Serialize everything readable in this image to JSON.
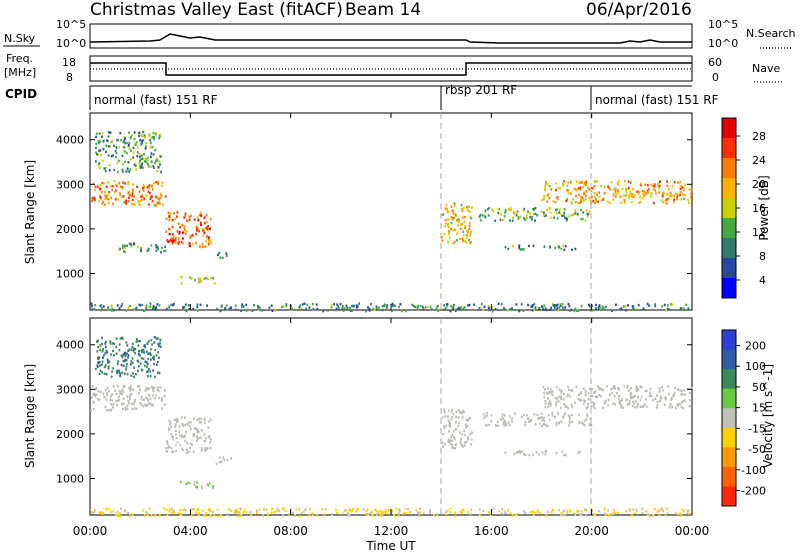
{
  "header": {
    "title": "Christmas Valley East (fitACF)",
    "beam": "Beam 14",
    "date": "06/Apr/2016"
  },
  "panels": {
    "nsky": {
      "label": "N.Sky",
      "left_ticks": [
        "10^5",
        "10^0"
      ],
      "right_ticks": [
        "10^5",
        "10^0"
      ],
      "right_label": "N.Search"
    },
    "freq": {
      "label_line1": "Freq.",
      "label_line2": "[MHz]",
      "left_ticks": [
        "18",
        "8"
      ],
      "right_ticks": [
        "60",
        "0"
      ],
      "right_label": "Nave"
    },
    "cpid": {
      "label": "CPID",
      "segments": [
        "normal (fast) 151 RF",
        "rbsp 201 RF",
        "normal (fast) 151 RF"
      ]
    }
  },
  "colors": {
    "power_scale": [
      "#0000ff",
      "#2747a0",
      "#2e7d6a",
      "#44aa44",
      "#c8d200",
      "#ffb300",
      "#ff7a00",
      "#ff3000",
      "#e00000"
    ],
    "velocity_scale": [
      "#2b3fd9",
      "#2f5fa8",
      "#3a8a5a",
      "#66cc44",
      "#c0c0b8",
      "#ffd000",
      "#ff9a00",
      "#ff6000",
      "#ff2a00"
    ],
    "ground_scatter": "#b8b8b0"
  },
  "chart_data": [
    {
      "type": "heatmap",
      "title": "",
      "xlabel": "Time UT",
      "ylabel": "Slant Range [km]",
      "x_ticks": [
        "00:00",
        "04:00",
        "08:00",
        "12:00",
        "16:00",
        "20:00",
        "00:00"
      ],
      "y_ticks": [
        "1000",
        "2000",
        "3000",
        "4000"
      ],
      "ylim": [
        180,
        4600
      ],
      "xlim_hours": [
        0,
        24
      ],
      "colorbar": {
        "label": "Power [dB]",
        "ticks": [
          "28",
          "24",
          "20",
          "16",
          "12",
          "8",
          "4"
        ],
        "range": [
          0,
          30
        ]
      },
      "echo_regions": [
        {
          "t0": 0.0,
          "t1": 3.0,
          "r0": 2550,
          "r1": 3100,
          "power": 22
        },
        {
          "t0": 0.2,
          "t1": 2.8,
          "r0": 3300,
          "r1": 4200,
          "power": 10
        },
        {
          "t0": 1.0,
          "t1": 3.0,
          "r0": 1500,
          "r1": 1700,
          "power": 8
        },
        {
          "t0": 3.0,
          "t1": 4.8,
          "r0": 1600,
          "r1": 2400,
          "power": 24
        },
        {
          "t0": 3.5,
          "t1": 5.0,
          "r0": 800,
          "r1": 950,
          "power": 16
        },
        {
          "t0": 5.0,
          "t1": 5.6,
          "r0": 1350,
          "r1": 1500,
          "power": 8
        },
        {
          "t0": 14.0,
          "t1": 15.2,
          "r0": 1700,
          "r1": 2600,
          "power": 18
        },
        {
          "t0": 15.5,
          "t1": 20.0,
          "r0": 2200,
          "r1": 2500,
          "power": 12
        },
        {
          "t0": 16.5,
          "t1": 19.5,
          "r0": 1550,
          "r1": 1650,
          "power": 8
        },
        {
          "t0": 18.0,
          "t1": 24.0,
          "r0": 2600,
          "r1": 3100,
          "power": 20
        },
        {
          "t0": 0.0,
          "t1": 24.0,
          "r0": 180,
          "r1": 350,
          "power": 8
        }
      ]
    },
    {
      "type": "heatmap",
      "title": "",
      "xlabel": "Time UT",
      "ylabel": "Slant Range [km]",
      "x_ticks": [
        "00:00",
        "04:00",
        "08:00",
        "12:00",
        "16:00",
        "20:00",
        "00:00"
      ],
      "y_ticks": [
        "1000",
        "2000",
        "3000",
        "4000"
      ],
      "ylim": [
        180,
        4600
      ],
      "xlim_hours": [
        0,
        24
      ],
      "colorbar": {
        "label": "Velocity [m s^-1]",
        "ticks": [
          "200",
          "100",
          "50",
          "15",
          "-15",
          "-50",
          "-100",
          "-200"
        ],
        "range": [
          -250,
          250
        ]
      },
      "echo_regions": [
        {
          "t0": 0.0,
          "t1": 3.0,
          "r0": 2550,
          "r1": 3100,
          "velocity": 0
        },
        {
          "t0": 0.2,
          "t1": 2.8,
          "r0": 3300,
          "r1": 4200,
          "velocity": 150
        },
        {
          "t0": 3.0,
          "t1": 4.8,
          "r0": 1600,
          "r1": 2400,
          "velocity": 0
        },
        {
          "t0": 3.5,
          "t1": 5.0,
          "r0": 800,
          "r1": 950,
          "velocity": 40
        },
        {
          "t0": 5.0,
          "t1": 5.6,
          "r0": 1350,
          "r1": 1500,
          "velocity": 0
        },
        {
          "t0": 14.0,
          "t1": 15.2,
          "r0": 1700,
          "r1": 2600,
          "velocity": 0
        },
        {
          "t0": 15.5,
          "t1": 20.0,
          "r0": 2200,
          "r1": 2500,
          "velocity": 0
        },
        {
          "t0": 16.5,
          "t1": 19.5,
          "r0": 1550,
          "r1": 1650,
          "velocity": 0
        },
        {
          "t0": 18.0,
          "t1": 24.0,
          "r0": 2600,
          "r1": 3100,
          "velocity": 0
        },
        {
          "t0": 0.0,
          "t1": 24.0,
          "r0": 180,
          "r1": 350,
          "velocity": -40
        }
      ]
    }
  ]
}
